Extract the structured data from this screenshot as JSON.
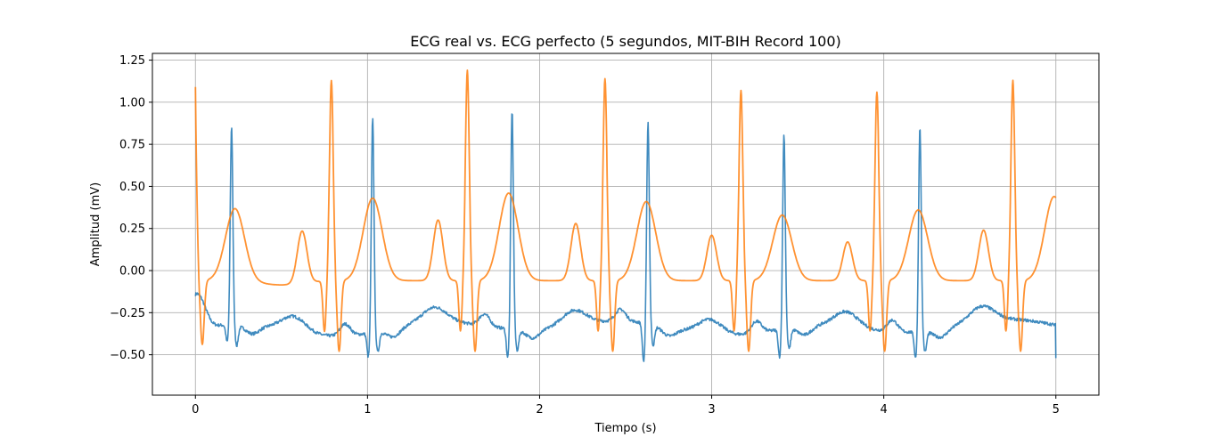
{
  "chart_data": {
    "type": "line",
    "title": "ECG real vs. ECG perfecto (5 segundos, MIT-BIH Record 100)",
    "xlabel": "Tiempo (s)",
    "ylabel": "Amplitud (mV)",
    "xlim": [
      -0.25,
      5.25
    ],
    "ylim": [
      -0.74,
      1.29
    ],
    "grid": true,
    "x_ticks": [
      0,
      1,
      2,
      3,
      4,
      5
    ],
    "x_tick_labels": [
      "0",
      "1",
      "2",
      "3",
      "4",
      "5"
    ],
    "y_ticks": [
      -0.5,
      -0.25,
      0.0,
      0.25,
      0.5,
      0.75,
      1.0,
      1.25
    ],
    "y_tick_labels": [
      "−0.50",
      "−0.25",
      "0.00",
      "0.25",
      "0.50",
      "0.75",
      "1.00",
      "1.25"
    ],
    "series": [
      {
        "color": "#1f77b4",
        "r_peaks_x": [
          0.21,
          1.03,
          1.84,
          2.63,
          3.42,
          4.21
        ],
        "r_peaks_y": [
          0.84,
          0.94,
          0.96,
          0.86,
          0.82,
          0.88
        ],
        "trough_y": [
          -0.48,
          -0.53,
          -0.57,
          -0.65,
          -0.56,
          -0.55
        ],
        "baseline_y": -0.34,
        "x_range": [
          0,
          5
        ],
        "end_value": -0.52
      },
      {
        "color": "#ff7f0e",
        "r_peaks_x": [
          0.79,
          1.58,
          2.38,
          3.17,
          3.96,
          4.75
        ],
        "r_peaks_y": [
          1.14,
          1.2,
          1.15,
          1.08,
          1.07,
          1.14
        ],
        "start_value": 1.09,
        "t_wave_y": [
          0.38,
          0.44,
          0.47,
          0.42,
          0.34,
          0.37,
          0.45
        ],
        "p_wave_y": [
          0.25,
          0.3,
          0.28,
          0.21,
          0.17,
          0.24
        ],
        "x_range": [
          0,
          5
        ]
      }
    ]
  }
}
